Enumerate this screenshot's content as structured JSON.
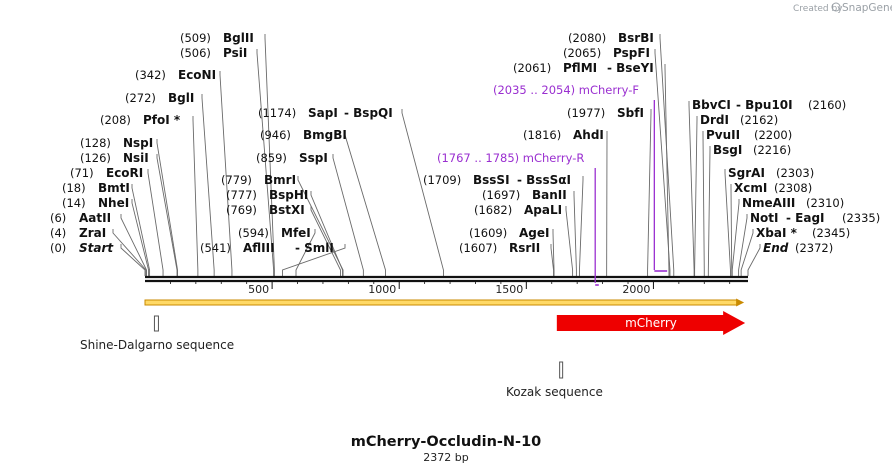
{
  "branding": {
    "created_by": "Created by",
    "name": "SnapGene"
  },
  "map": {
    "title": "mCherry-Occludin-N-10",
    "length_label": "2372 bp",
    "length": 2372,
    "ticks": [
      {
        "label": "500",
        "value": 500
      },
      {
        "label": "1000",
        "value": 1000
      },
      {
        "label": "1500",
        "value": 1500
      },
      {
        "label": "2000",
        "value": 2000
      }
    ],
    "sites_left": [
      {
        "pos": "(0)",
        "name": "Start",
        "italic": true,
        "bp": 0
      },
      {
        "pos": "(4)",
        "name": "ZraI",
        "bp": 4
      },
      {
        "pos": "(6)",
        "name": "AatII",
        "bp": 6
      },
      {
        "pos": "(14)",
        "name": "NheI",
        "bp": 14
      },
      {
        "pos": "(18)",
        "name": "BmtI",
        "bp": 18
      },
      {
        "pos": "(71)",
        "name": "EcoRI",
        "bp": 71
      },
      {
        "pos": "(126)",
        "name": "NsiI",
        "bp": 126
      },
      {
        "pos": "(128)",
        "name": "NspI",
        "bp": 128
      },
      {
        "pos": "(208)",
        "name": "PfoI *",
        "bp": 208
      },
      {
        "pos": "(272)",
        "name": "BglI",
        "bp": 272
      },
      {
        "pos": "(342)",
        "name": "EcoNI",
        "bp": 342
      },
      {
        "pos": "(506)",
        "name": "PsiI",
        "bp": 506
      },
      {
        "pos": "(509)",
        "name": "BglII",
        "bp": 509
      }
    ],
    "sites_mid": [
      {
        "pos": "(541)",
        "name": "AflIII",
        "name2": "SmlI",
        "bp": 541
      },
      {
        "pos": "(594)",
        "name": "MfeI",
        "bp": 594
      },
      {
        "pos": "(769)",
        "name": "BstXI",
        "bp": 769
      },
      {
        "pos": "(777)",
        "name": "BspHI",
        "bp": 777
      },
      {
        "pos": "(779)",
        "name": "BmrI",
        "bp": 779
      },
      {
        "pos": "(859)",
        "name": "SspI",
        "bp": 859
      },
      {
        "pos": "(946)",
        "name": "BmgBI",
        "bp": 946
      },
      {
        "pos": "(1174)",
        "name": "SapI",
        "name2": "BspQI",
        "bp": 1174
      }
    ],
    "sites_right": [
      {
        "pos": "(1607)",
        "name": "RsrII",
        "bp": 1607
      },
      {
        "pos": "(1609)",
        "name": "AgeI",
        "bp": 1609
      },
      {
        "pos": "(1682)",
        "name": "ApaLI",
        "bp": 1682
      },
      {
        "pos": "(1697)",
        "name": "BanII",
        "bp": 1697
      },
      {
        "pos": "(1709)",
        "name": "BssSI",
        "name2": "BssSαI",
        "bp": 1709
      },
      {
        "pos": "(1816)",
        "name": "AhdI",
        "bp": 1816
      },
      {
        "pos": "(1977)",
        "name": "SbfI",
        "bp": 1977
      },
      {
        "pos": "(2061)",
        "name": "PflMI",
        "name2": "BseYI",
        "bp": 2061
      },
      {
        "pos": "(2065)",
        "name": "PspFI",
        "bp": 2065
      },
      {
        "pos": "(2080)",
        "name": "BsrBI",
        "bp": 2080
      }
    ],
    "sites_far": [
      {
        "name": "BbvCI",
        "name2": "Bpu10I",
        "pos": "(2160)",
        "bp": 2160
      },
      {
        "name": "DrdI",
        "pos": "(2162)",
        "bp": 2162
      },
      {
        "name": "PvuII",
        "pos": "(2200)",
        "bp": 2200
      },
      {
        "name": "BsgI",
        "pos": "(2216)",
        "bp": 2216
      },
      {
        "name": "SgrAI",
        "pos": "(2303)",
        "bp": 2303
      },
      {
        "name": "XcmI",
        "pos": "(2308)",
        "bp": 2308
      },
      {
        "name": "NmeAIII",
        "pos": "(2310)",
        "bp": 2310
      },
      {
        "name": "NotI",
        "name2": "EagI",
        "pos": "(2335)",
        "bp": 2335
      },
      {
        "name": "XbaI *",
        "pos": "(2345)",
        "bp": 2345
      },
      {
        "name": "End",
        "italic": true,
        "pos": "(2372)",
        "bp": 2372
      }
    ],
    "primers": [
      {
        "range": "(2035 .. 2054)",
        "name": "mCherry-F",
        "start": 2035,
        "end": 2054
      },
      {
        "range": "(1767 .. 1785)",
        "name": "mCherry-R",
        "start": 1767,
        "end": 1785
      }
    ],
    "features": [
      {
        "name": "Shine-Dalgarno sequence",
        "start": 45,
        "end": 50
      },
      {
        "name": "Kozak sequence",
        "start": 1635,
        "end": 1644
      }
    ],
    "orf": {
      "start": 0,
      "end": 2345
    },
    "mcherry": {
      "label": "mCherry",
      "start": 1620,
      "end": 2345
    },
    "colors": {
      "primer": "#9a2fd0",
      "mcherry": "#ee0000",
      "orf_fill": "#ffd966",
      "orf_stroke": "#c98a00",
      "backbone": "#111111",
      "leader": "#555555"
    }
  }
}
